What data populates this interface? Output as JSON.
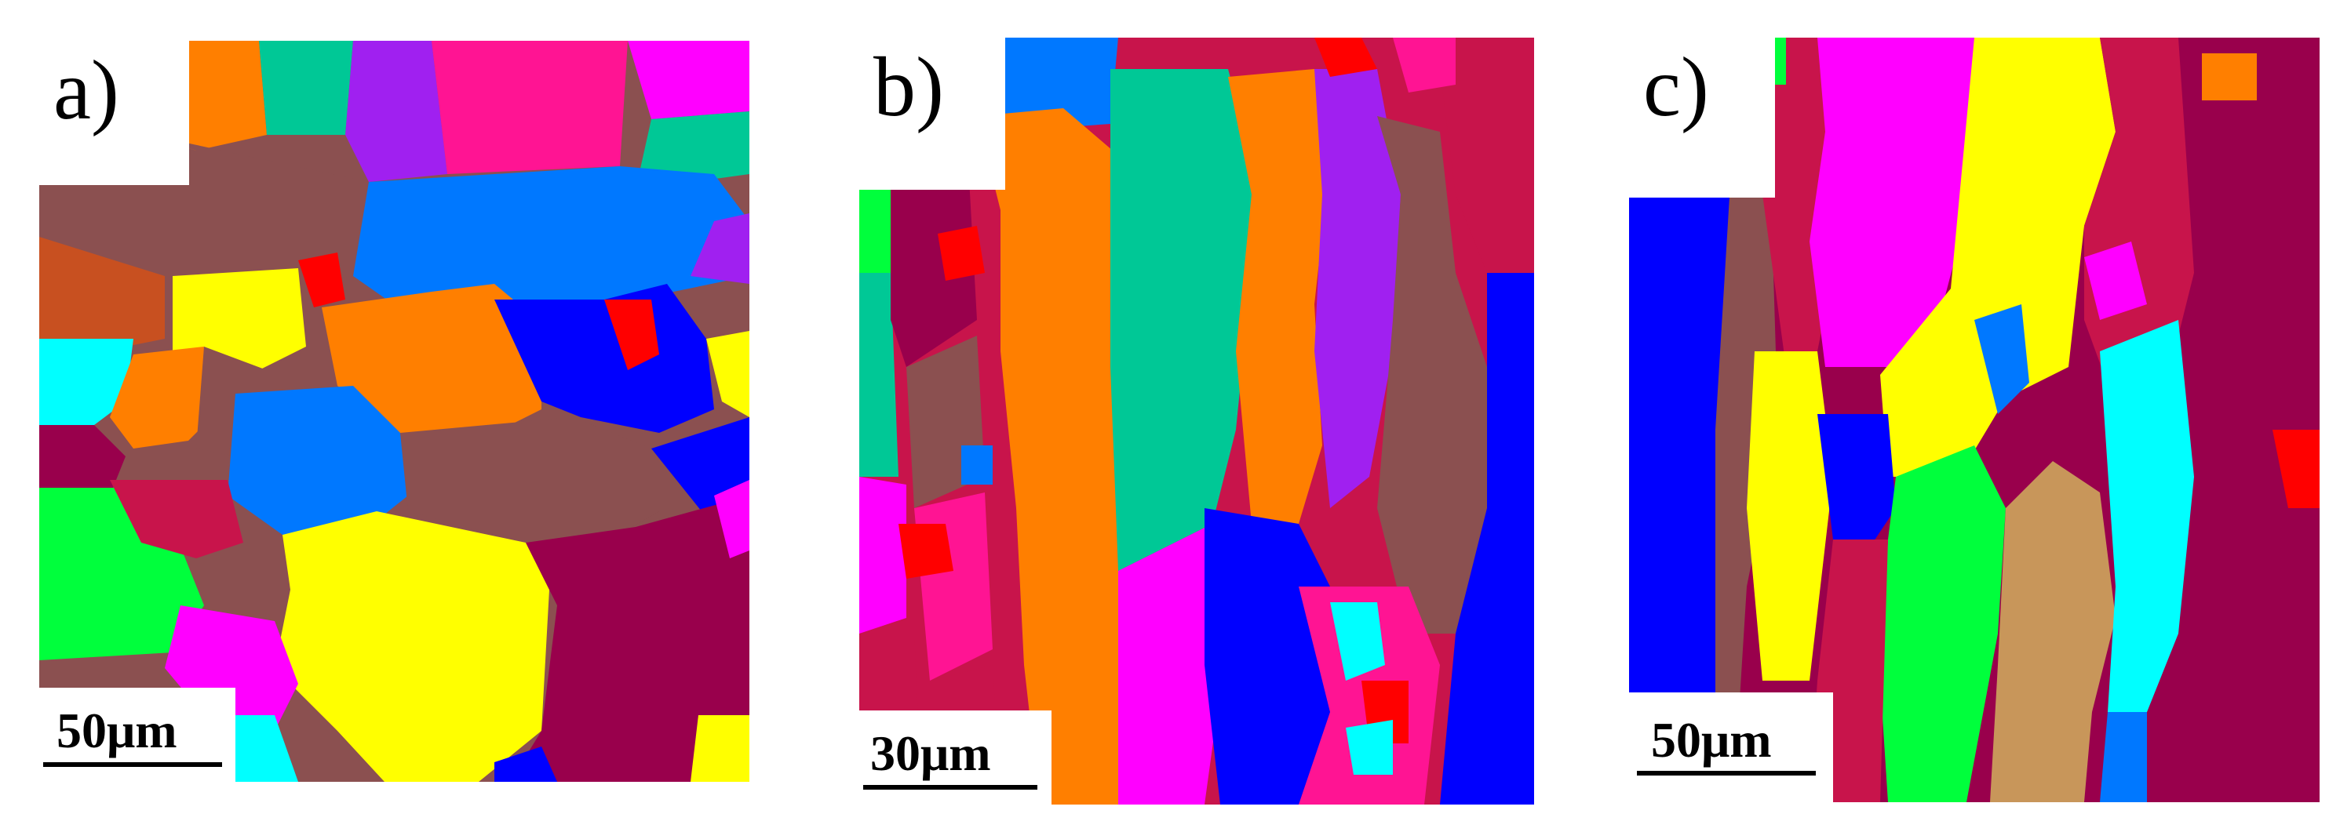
{
  "figure": {
    "panels": [
      {
        "id": "a",
        "label": "a)",
        "scale_text": "50μm"
      },
      {
        "id": "b",
        "label": "b)",
        "scale_text": "30μm"
      },
      {
        "id": "c",
        "label": "c)",
        "scale_text": "50μm"
      }
    ]
  },
  "grain_colors": {
    "orange": "#ff7f00",
    "brown": "#8b5050",
    "blue": "#0078ff",
    "magenta": "#ff00ff",
    "purple": "#a020f0",
    "teal": "#00c896",
    "pink": "#ff1493",
    "yellow": "#ffff00",
    "navy": "#0000ff",
    "green": "#00ff3c",
    "cyan": "#00ffff",
    "crimson": "#c8144b",
    "maroon": "#99004c",
    "red": "#ff0000",
    "rust": "#c85020",
    "tan": "#c8965a",
    "violet": "#9900ff"
  }
}
